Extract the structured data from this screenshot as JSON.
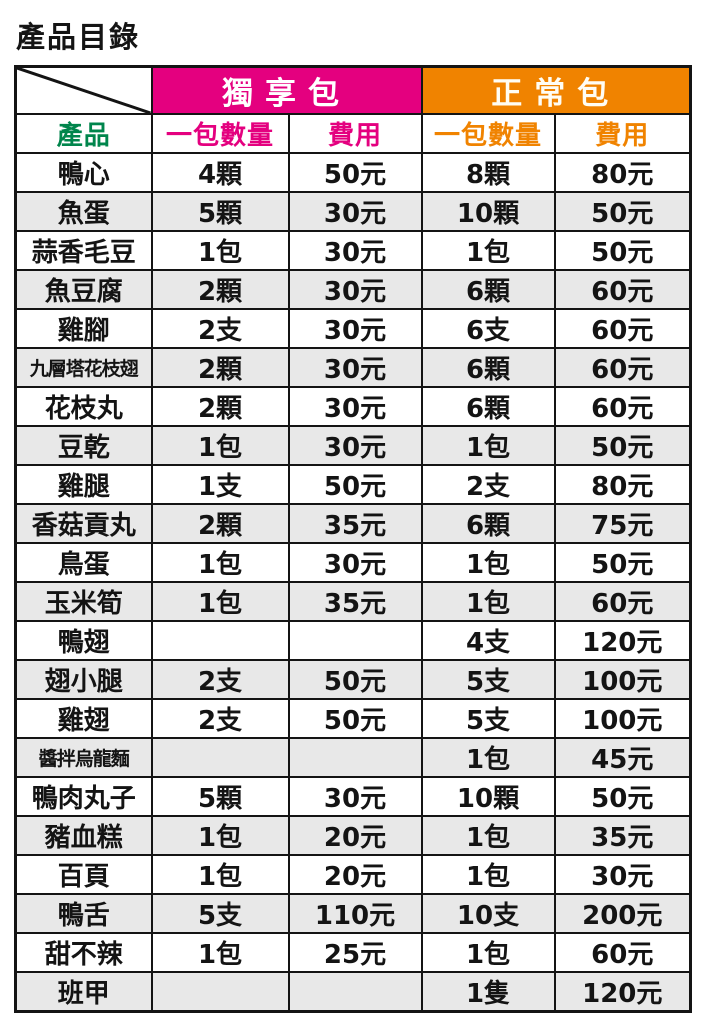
{
  "page_title": "產品目錄",
  "colors": {
    "solo_pack_bg": "#E4007F",
    "normal_pack_bg": "#F08300",
    "product_header_text": "#00854C",
    "alt_row_bg": "#E8E8E8",
    "border": "#141414",
    "header_text": "#FFFFFF"
  },
  "table": {
    "group_headers": [
      {
        "label": "獨享包"
      },
      {
        "label": "正常包"
      }
    ],
    "column_headers": {
      "product": "產品",
      "solo_qty": "一包數量",
      "solo_price": "費用",
      "normal_qty": "一包數量",
      "normal_price": "費用"
    },
    "rows": [
      {
        "cells": [
          "鴨心",
          "4顆",
          "50元",
          "8顆",
          "80元"
        ]
      },
      {
        "cells": [
          "魚蛋",
          "5顆",
          "30元",
          "10顆",
          "50元"
        ]
      },
      {
        "cells": [
          "蒜香毛豆",
          "1包",
          "30元",
          "1包",
          "50元"
        ]
      },
      {
        "cells": [
          "魚豆腐",
          "2顆",
          "30元",
          "6顆",
          "60元"
        ]
      },
      {
        "cells": [
          "雞腳",
          "2支",
          "30元",
          "6支",
          "60元"
        ]
      },
      {
        "cells": [
          "九層塔花枝翅",
          "2顆",
          "30元",
          "6顆",
          "60元"
        ]
      },
      {
        "cells": [
          "花枝丸",
          "2顆",
          "30元",
          "6顆",
          "60元"
        ]
      },
      {
        "cells": [
          "豆乾",
          "1包",
          "30元",
          "1包",
          "50元"
        ]
      },
      {
        "cells": [
          "雞腿",
          "1支",
          "50元",
          "2支",
          "80元"
        ]
      },
      {
        "cells": [
          "香菇貢丸",
          "2顆",
          "35元",
          "6顆",
          "75元"
        ]
      },
      {
        "cells": [
          "鳥蛋",
          "1包",
          "30元",
          "1包",
          "50元"
        ]
      },
      {
        "cells": [
          "玉米筍",
          "1包",
          "35元",
          "1包",
          "60元"
        ]
      },
      {
        "cells": [
          "鴨翅",
          "",
          "",
          "4支",
          "120元"
        ]
      },
      {
        "cells": [
          "翅小腿",
          "2支",
          "50元",
          "5支",
          "100元"
        ]
      },
      {
        "cells": [
          "雞翅",
          "2支",
          "50元",
          "5支",
          "100元"
        ]
      },
      {
        "cells": [
          "醬拌烏龍麵",
          "",
          "",
          "1包",
          "45元"
        ]
      },
      {
        "cells": [
          "鴨肉丸子",
          "5顆",
          "30元",
          "10顆",
          "50元"
        ]
      },
      {
        "cells": [
          "豬血糕",
          "1包",
          "20元",
          "1包",
          "35元"
        ]
      },
      {
        "cells": [
          "百頁",
          "1包",
          "20元",
          "1包",
          "30元"
        ]
      },
      {
        "cells": [
          "鴨舌",
          "5支",
          "110元",
          "10支",
          "200元"
        ]
      },
      {
        "cells": [
          "甜不辣",
          "1包",
          "25元",
          "1包",
          "60元"
        ]
      },
      {
        "cells": [
          "班甲",
          "",
          "",
          "1隻",
          "120元"
        ]
      }
    ]
  }
}
